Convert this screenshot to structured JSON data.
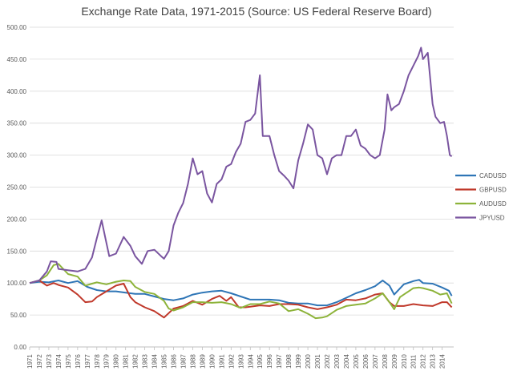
{
  "chart_data": {
    "type": "line",
    "title": "Exchange Rate Data, 1971-2015 (Source: US Federal Reserve Board)",
    "xlabel": "",
    "ylabel": "",
    "ylim": [
      0,
      500
    ],
    "y_ticks": [
      "0.00",
      "50.00",
      "100.00",
      "150.00",
      "200.00",
      "250.00",
      "300.00",
      "350.00",
      "400.00",
      "450.00",
      "500.00"
    ],
    "x_ticks": [
      "1971",
      "1972",
      "1973",
      "1974",
      "1975",
      "1976",
      "1977",
      "1978",
      "1979",
      "1980",
      "1981",
      "1982",
      "1983",
      "1984",
      "1985",
      "1986",
      "1987",
      "1988",
      "1989",
      "1990",
      "1991",
      "1992",
      "1993",
      "1994",
      "1995",
      "1996",
      "1997",
      "1998",
      "1999",
      "2000",
      "2001",
      "2002",
      "2003",
      "2004",
      "2005",
      "2006",
      "2007",
      "2008",
      "2009",
      "2010",
      "2011",
      "2012",
      "2013",
      "2014"
    ],
    "grid": "horizontal",
    "legend_position": "right",
    "series": [
      {
        "name": "CADUSD",
        "color": "#2e75b6",
        "points": [
          [
            1971.0,
            100
          ],
          [
            1972.0,
            102
          ],
          [
            1973.0,
            101
          ],
          [
            1974.0,
            104
          ],
          [
            1975.0,
            100
          ],
          [
            1976.0,
            103
          ],
          [
            1977.0,
            94
          ],
          [
            1978.0,
            89
          ],
          [
            1979.0,
            87
          ],
          [
            1980.0,
            87
          ],
          [
            1981.0,
            85
          ],
          [
            1982.0,
            83
          ],
          [
            1983.0,
            83
          ],
          [
            1984.0,
            79
          ],
          [
            1985.0,
            75
          ],
          [
            1986.0,
            73
          ],
          [
            1987.0,
            76
          ],
          [
            1988.0,
            82
          ],
          [
            1989.0,
            85
          ],
          [
            1990.0,
            87
          ],
          [
            1991.0,
            88
          ],
          [
            1992.0,
            84
          ],
          [
            1993.0,
            79
          ],
          [
            1994.0,
            74
          ],
          [
            1995.0,
            74
          ],
          [
            1996.0,
            74
          ],
          [
            1997.0,
            73
          ],
          [
            1998.0,
            69
          ],
          [
            1999.0,
            68
          ],
          [
            2000.0,
            68
          ],
          [
            2001.0,
            65
          ],
          [
            2002.0,
            65
          ],
          [
            2003.0,
            70
          ],
          [
            2004.0,
            77
          ],
          [
            2005.0,
            84
          ],
          [
            2006.0,
            89
          ],
          [
            2007.0,
            95
          ],
          [
            2007.8,
            104
          ],
          [
            2008.5,
            96
          ],
          [
            2009.0,
            82
          ],
          [
            2010.0,
            98
          ],
          [
            2011.0,
            103
          ],
          [
            2011.6,
            105
          ],
          [
            2012.0,
            100
          ],
          [
            2013.0,
            99
          ],
          [
            2014.0,
            93
          ],
          [
            2014.7,
            88
          ],
          [
            2015.0,
            80
          ]
        ]
      },
      {
        "name": "GBPUSD",
        "color": "#c0392b",
        "points": [
          [
            1971.0,
            100
          ],
          [
            1972.0,
            104
          ],
          [
            1972.8,
            96
          ],
          [
            1973.5,
            100
          ],
          [
            1974.0,
            97
          ],
          [
            1975.0,
            93
          ],
          [
            1976.0,
            82
          ],
          [
            1976.8,
            70
          ],
          [
            1977.5,
            71
          ],
          [
            1978.0,
            78
          ],
          [
            1979.0,
            87
          ],
          [
            1980.0,
            96
          ],
          [
            1980.8,
            99
          ],
          [
            1981.5,
            78
          ],
          [
            1982.0,
            70
          ],
          [
            1983.0,
            62
          ],
          [
            1984.0,
            56
          ],
          [
            1985.0,
            46
          ],
          [
            1986.0,
            60
          ],
          [
            1987.0,
            64
          ],
          [
            1988.0,
            72
          ],
          [
            1989.0,
            66
          ],
          [
            1990.0,
            75
          ],
          [
            1990.8,
            80
          ],
          [
            1991.5,
            72
          ],
          [
            1992.0,
            78
          ],
          [
            1992.8,
            62
          ],
          [
            1993.5,
            62
          ],
          [
            1994.0,
            63
          ],
          [
            1995.0,
            65
          ],
          [
            1996.0,
            64
          ],
          [
            1997.0,
            67
          ],
          [
            1998.0,
            67
          ],
          [
            1999.0,
            66
          ],
          [
            2000.0,
            62
          ],
          [
            2001.0,
            59
          ],
          [
            2002.0,
            62
          ],
          [
            2003.0,
            66
          ],
          [
            2004.0,
            74
          ],
          [
            2005.0,
            73
          ],
          [
            2006.0,
            76
          ],
          [
            2007.0,
            82
          ],
          [
            2007.8,
            84
          ],
          [
            2008.5,
            70
          ],
          [
            2009.0,
            64
          ],
          [
            2010.0,
            64
          ],
          [
            2011.0,
            67
          ],
          [
            2012.0,
            65
          ],
          [
            2013.0,
            64
          ],
          [
            2014.0,
            70
          ],
          [
            2014.5,
            70
          ],
          [
            2015.0,
            62
          ]
        ]
      },
      {
        "name": "AUDUSD",
        "color": "#8db33a",
        "points": [
          [
            1971.0,
            100
          ],
          [
            1972.0,
            104
          ],
          [
            1972.8,
            112
          ],
          [
            1973.5,
            128
          ],
          [
            1974.0,
            130
          ],
          [
            1975.0,
            114
          ],
          [
            1976.0,
            110
          ],
          [
            1976.8,
            96
          ],
          [
            1977.5,
            99
          ],
          [
            1978.0,
            101
          ],
          [
            1979.0,
            98
          ],
          [
            1980.0,
            102
          ],
          [
            1980.8,
            104
          ],
          [
            1981.5,
            103
          ],
          [
            1982.0,
            94
          ],
          [
            1983.0,
            86
          ],
          [
            1984.0,
            83
          ],
          [
            1985.0,
            72
          ],
          [
            1985.5,
            60
          ],
          [
            1986.0,
            57
          ],
          [
            1987.0,
            62
          ],
          [
            1988.0,
            70
          ],
          [
            1989.0,
            70
          ],
          [
            1990.0,
            69
          ],
          [
            1991.0,
            70
          ],
          [
            1992.0,
            67
          ],
          [
            1993.0,
            61
          ],
          [
            1994.0,
            67
          ],
          [
            1995.0,
            67
          ],
          [
            1996.0,
            71
          ],
          [
            1997.0,
            68
          ],
          [
            1998.0,
            56
          ],
          [
            1999.0,
            59
          ],
          [
            2000.0,
            52
          ],
          [
            2000.8,
            45
          ],
          [
            2001.5,
            46
          ],
          [
            2002.0,
            48
          ],
          [
            2003.0,
            58
          ],
          [
            2004.0,
            64
          ],
          [
            2005.0,
            66
          ],
          [
            2006.0,
            68
          ],
          [
            2007.0,
            76
          ],
          [
            2007.8,
            84
          ],
          [
            2008.5,
            70
          ],
          [
            2009.0,
            59
          ],
          [
            2009.6,
            78
          ],
          [
            2010.0,
            82
          ],
          [
            2011.0,
            92
          ],
          [
            2011.6,
            93
          ],
          [
            2012.0,
            92
          ],
          [
            2013.0,
            88
          ],
          [
            2013.8,
            82
          ],
          [
            2014.5,
            84
          ],
          [
            2015.0,
            68
          ]
        ]
      },
      {
        "name": "JPYUSD",
        "color": "#7a55a0",
        "points": [
          [
            1971.0,
            100
          ],
          [
            1972.0,
            104
          ],
          [
            1972.8,
            118
          ],
          [
            1973.2,
            134
          ],
          [
            1973.8,
            133
          ],
          [
            1974.0,
            122
          ],
          [
            1975.0,
            120
          ],
          [
            1976.0,
            118
          ],
          [
            1976.8,
            122
          ],
          [
            1977.5,
            140
          ],
          [
            1978.0,
            170
          ],
          [
            1978.5,
            198
          ],
          [
            1978.9,
            170
          ],
          [
            1979.3,
            142
          ],
          [
            1980.0,
            146
          ],
          [
            1980.8,
            172
          ],
          [
            1981.5,
            158
          ],
          [
            1982.0,
            142
          ],
          [
            1982.7,
            130
          ],
          [
            1983.3,
            150
          ],
          [
            1984.0,
            152
          ],
          [
            1984.7,
            142
          ],
          [
            1985.0,
            138
          ],
          [
            1985.5,
            150
          ],
          [
            1986.0,
            190
          ],
          [
            1986.5,
            210
          ],
          [
            1987.0,
            225
          ],
          [
            1987.5,
            255
          ],
          [
            1988.0,
            295
          ],
          [
            1988.5,
            270
          ],
          [
            1989.0,
            275
          ],
          [
            1989.5,
            240
          ],
          [
            1990.0,
            226
          ],
          [
            1990.5,
            255
          ],
          [
            1991.0,
            262
          ],
          [
            1991.5,
            282
          ],
          [
            1992.0,
            286
          ],
          [
            1992.5,
            305
          ],
          [
            1993.0,
            318
          ],
          [
            1993.5,
            352
          ],
          [
            1994.0,
            355
          ],
          [
            1994.5,
            365
          ],
          [
            1995.0,
            425
          ],
          [
            1995.3,
            330
          ],
          [
            1996.0,
            330
          ],
          [
            1996.5,
            300
          ],
          [
            1997.0,
            275
          ],
          [
            1997.5,
            268
          ],
          [
            1998.0,
            260
          ],
          [
            1998.5,
            248
          ],
          [
            1999.0,
            292
          ],
          [
            1999.5,
            318
          ],
          [
            2000.0,
            348
          ],
          [
            2000.5,
            340
          ],
          [
            2001.0,
            300
          ],
          [
            2001.5,
            295
          ],
          [
            2002.0,
            270
          ],
          [
            2002.5,
            295
          ],
          [
            2003.0,
            300
          ],
          [
            2003.5,
            300
          ],
          [
            2004.0,
            330
          ],
          [
            2004.5,
            330
          ],
          [
            2005.0,
            340
          ],
          [
            2005.5,
            315
          ],
          [
            2006.0,
            310
          ],
          [
            2006.5,
            300
          ],
          [
            2007.0,
            295
          ],
          [
            2007.5,
            300
          ],
          [
            2008.0,
            340
          ],
          [
            2008.3,
            395
          ],
          [
            2008.7,
            370
          ],
          [
            2009.0,
            375
          ],
          [
            2009.5,
            380
          ],
          [
            2010.0,
            400
          ],
          [
            2010.5,
            425
          ],
          [
            2011.0,
            440
          ],
          [
            2011.5,
            455
          ],
          [
            2011.8,
            468
          ],
          [
            2012.0,
            450
          ],
          [
            2012.5,
            460
          ],
          [
            2013.0,
            380
          ],
          [
            2013.3,
            360
          ],
          [
            2013.8,
            350
          ],
          [
            2014.2,
            352
          ],
          [
            2014.5,
            330
          ],
          [
            2014.8,
            300
          ],
          [
            2015.0,
            298
          ]
        ]
      }
    ]
  }
}
